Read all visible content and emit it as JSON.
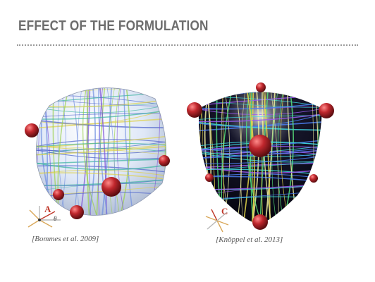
{
  "slide": {
    "title": "EFFECT OF THE FORMULATION"
  },
  "figures": [
    {
      "frame_label": "A",
      "angle_symbol": "θ",
      "citation": "[Bommes et al. 2009]",
      "surface_color": "#dfe8f7",
      "line_colors": [
        "#4a5fc9",
        "#7a4fd6",
        "#3bb3a0",
        "#9ad04a",
        "#e0d24a",
        "#6f8fe0"
      ]
    },
    {
      "frame_label": "C",
      "citation": "[Knöppel et al. 2013]",
      "surface_color": "#0b0b1e",
      "line_colors": [
        "#3fd7e0",
        "#e6d84a",
        "#9a5cf0",
        "#57e07a",
        "#4a7cf0",
        "#f0f0a0"
      ]
    }
  ],
  "sphere_color": "#c0272d"
}
